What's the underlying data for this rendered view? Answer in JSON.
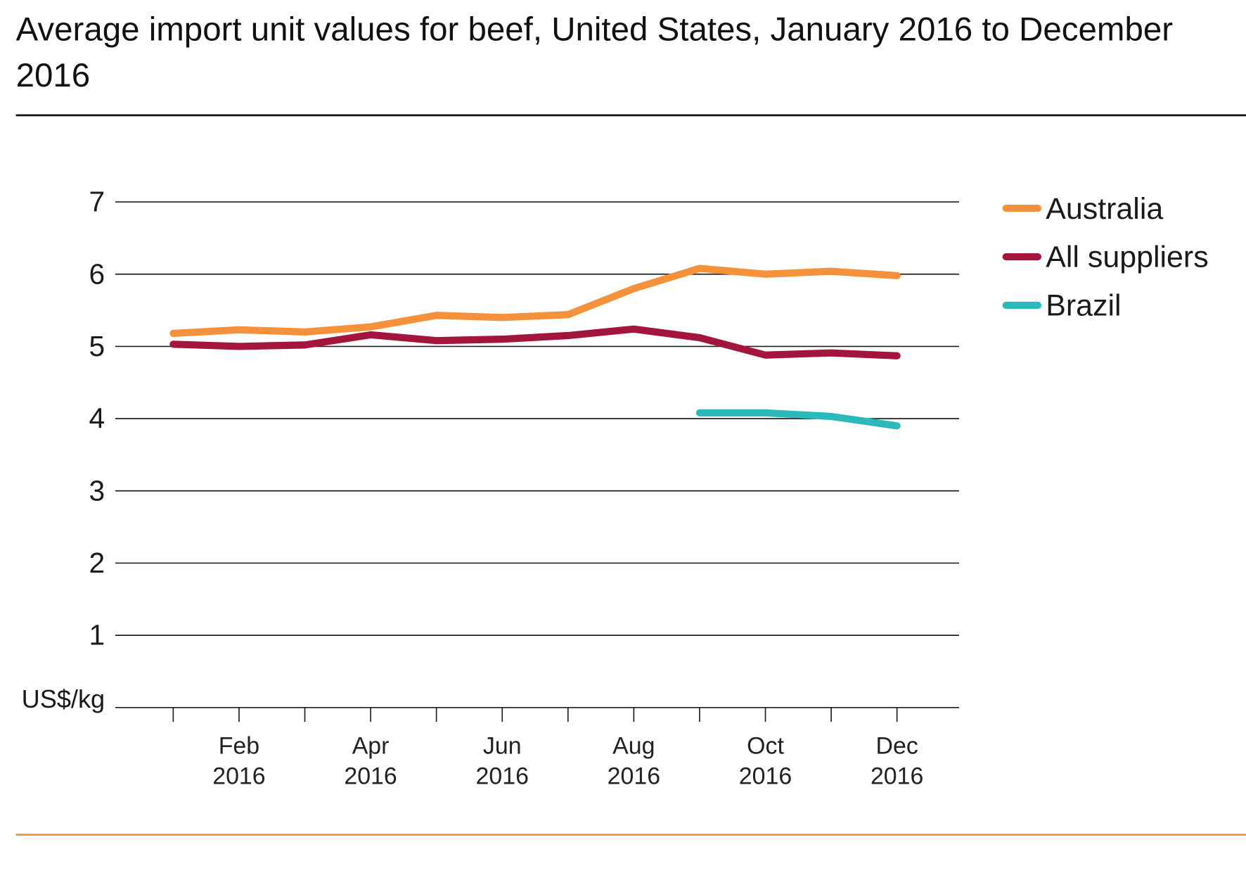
{
  "chart_data": {
    "type": "line",
    "title": "Average import unit values for beef, United States, January 2016 to December 2016",
    "y_label": "US$/kg",
    "categories": [
      null,
      "Feb 2016",
      null,
      "Apr 2016",
      null,
      "Jun 2016",
      null,
      "Aug 2016",
      null,
      "Oct 2016",
      null,
      "Dec 2016"
    ],
    "series": [
      {
        "name": "Australia",
        "color": "#f5913a",
        "values": [
          5.18,
          5.23,
          5.2,
          5.27,
          5.43,
          5.4,
          5.44,
          5.8,
          6.08,
          6.0,
          6.04,
          5.98
        ]
      },
      {
        "name": "All suppliers",
        "color": "#a3153d",
        "values": [
          5.03,
          5.0,
          5.02,
          5.16,
          5.08,
          5.1,
          5.15,
          5.24,
          5.12,
          4.88,
          4.91,
          4.87
        ]
      },
      {
        "name": "Brazil",
        "color": "#2bb9bb",
        "values": [
          null,
          null,
          null,
          null,
          null,
          null,
          null,
          null,
          4.08,
          4.08,
          4.03,
          3.9
        ]
      }
    ],
    "ylim": [
      0,
      7
    ],
    "yticks": [
      1,
      2,
      3,
      4,
      5,
      6,
      7
    ],
    "grid": true,
    "legend": "right"
  }
}
